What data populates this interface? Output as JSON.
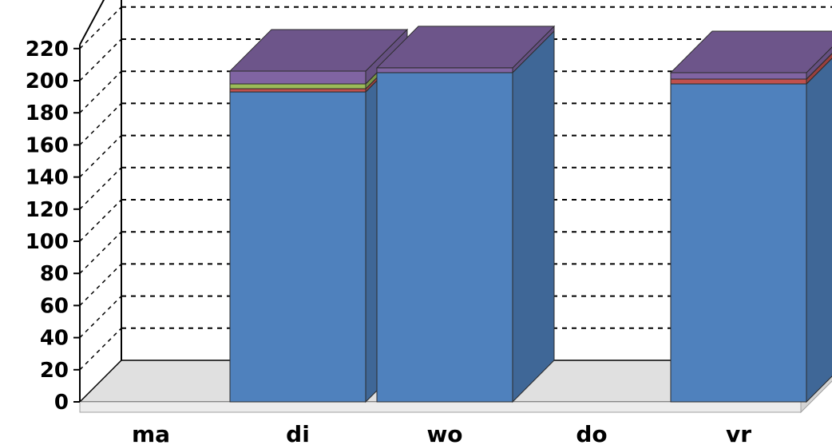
{
  "chart_data": {
    "type": "bar",
    "stacked": true,
    "three_d": true,
    "categories": [
      "ma",
      "di",
      "wo",
      "do",
      "vr"
    ],
    "series": [
      {
        "color": "#4f81bd",
        "values": [
          0,
          193,
          205,
          0,
          198
        ]
      },
      {
        "color": "#c0504d",
        "values": [
          0,
          2,
          0,
          0,
          3
        ]
      },
      {
        "color": "#9bbb59",
        "values": [
          0,
          3,
          0,
          0,
          0
        ]
      },
      {
        "color": "#8064a2",
        "values": [
          0,
          8,
          3,
          0,
          4
        ]
      }
    ],
    "y_ticks": [
      "0",
      "20",
      "40",
      "60",
      "80",
      "100",
      "120",
      "140",
      "160",
      "180",
      "200",
      "220"
    ],
    "ylim": [
      0,
      220
    ],
    "grid": true,
    "legend": "none"
  }
}
